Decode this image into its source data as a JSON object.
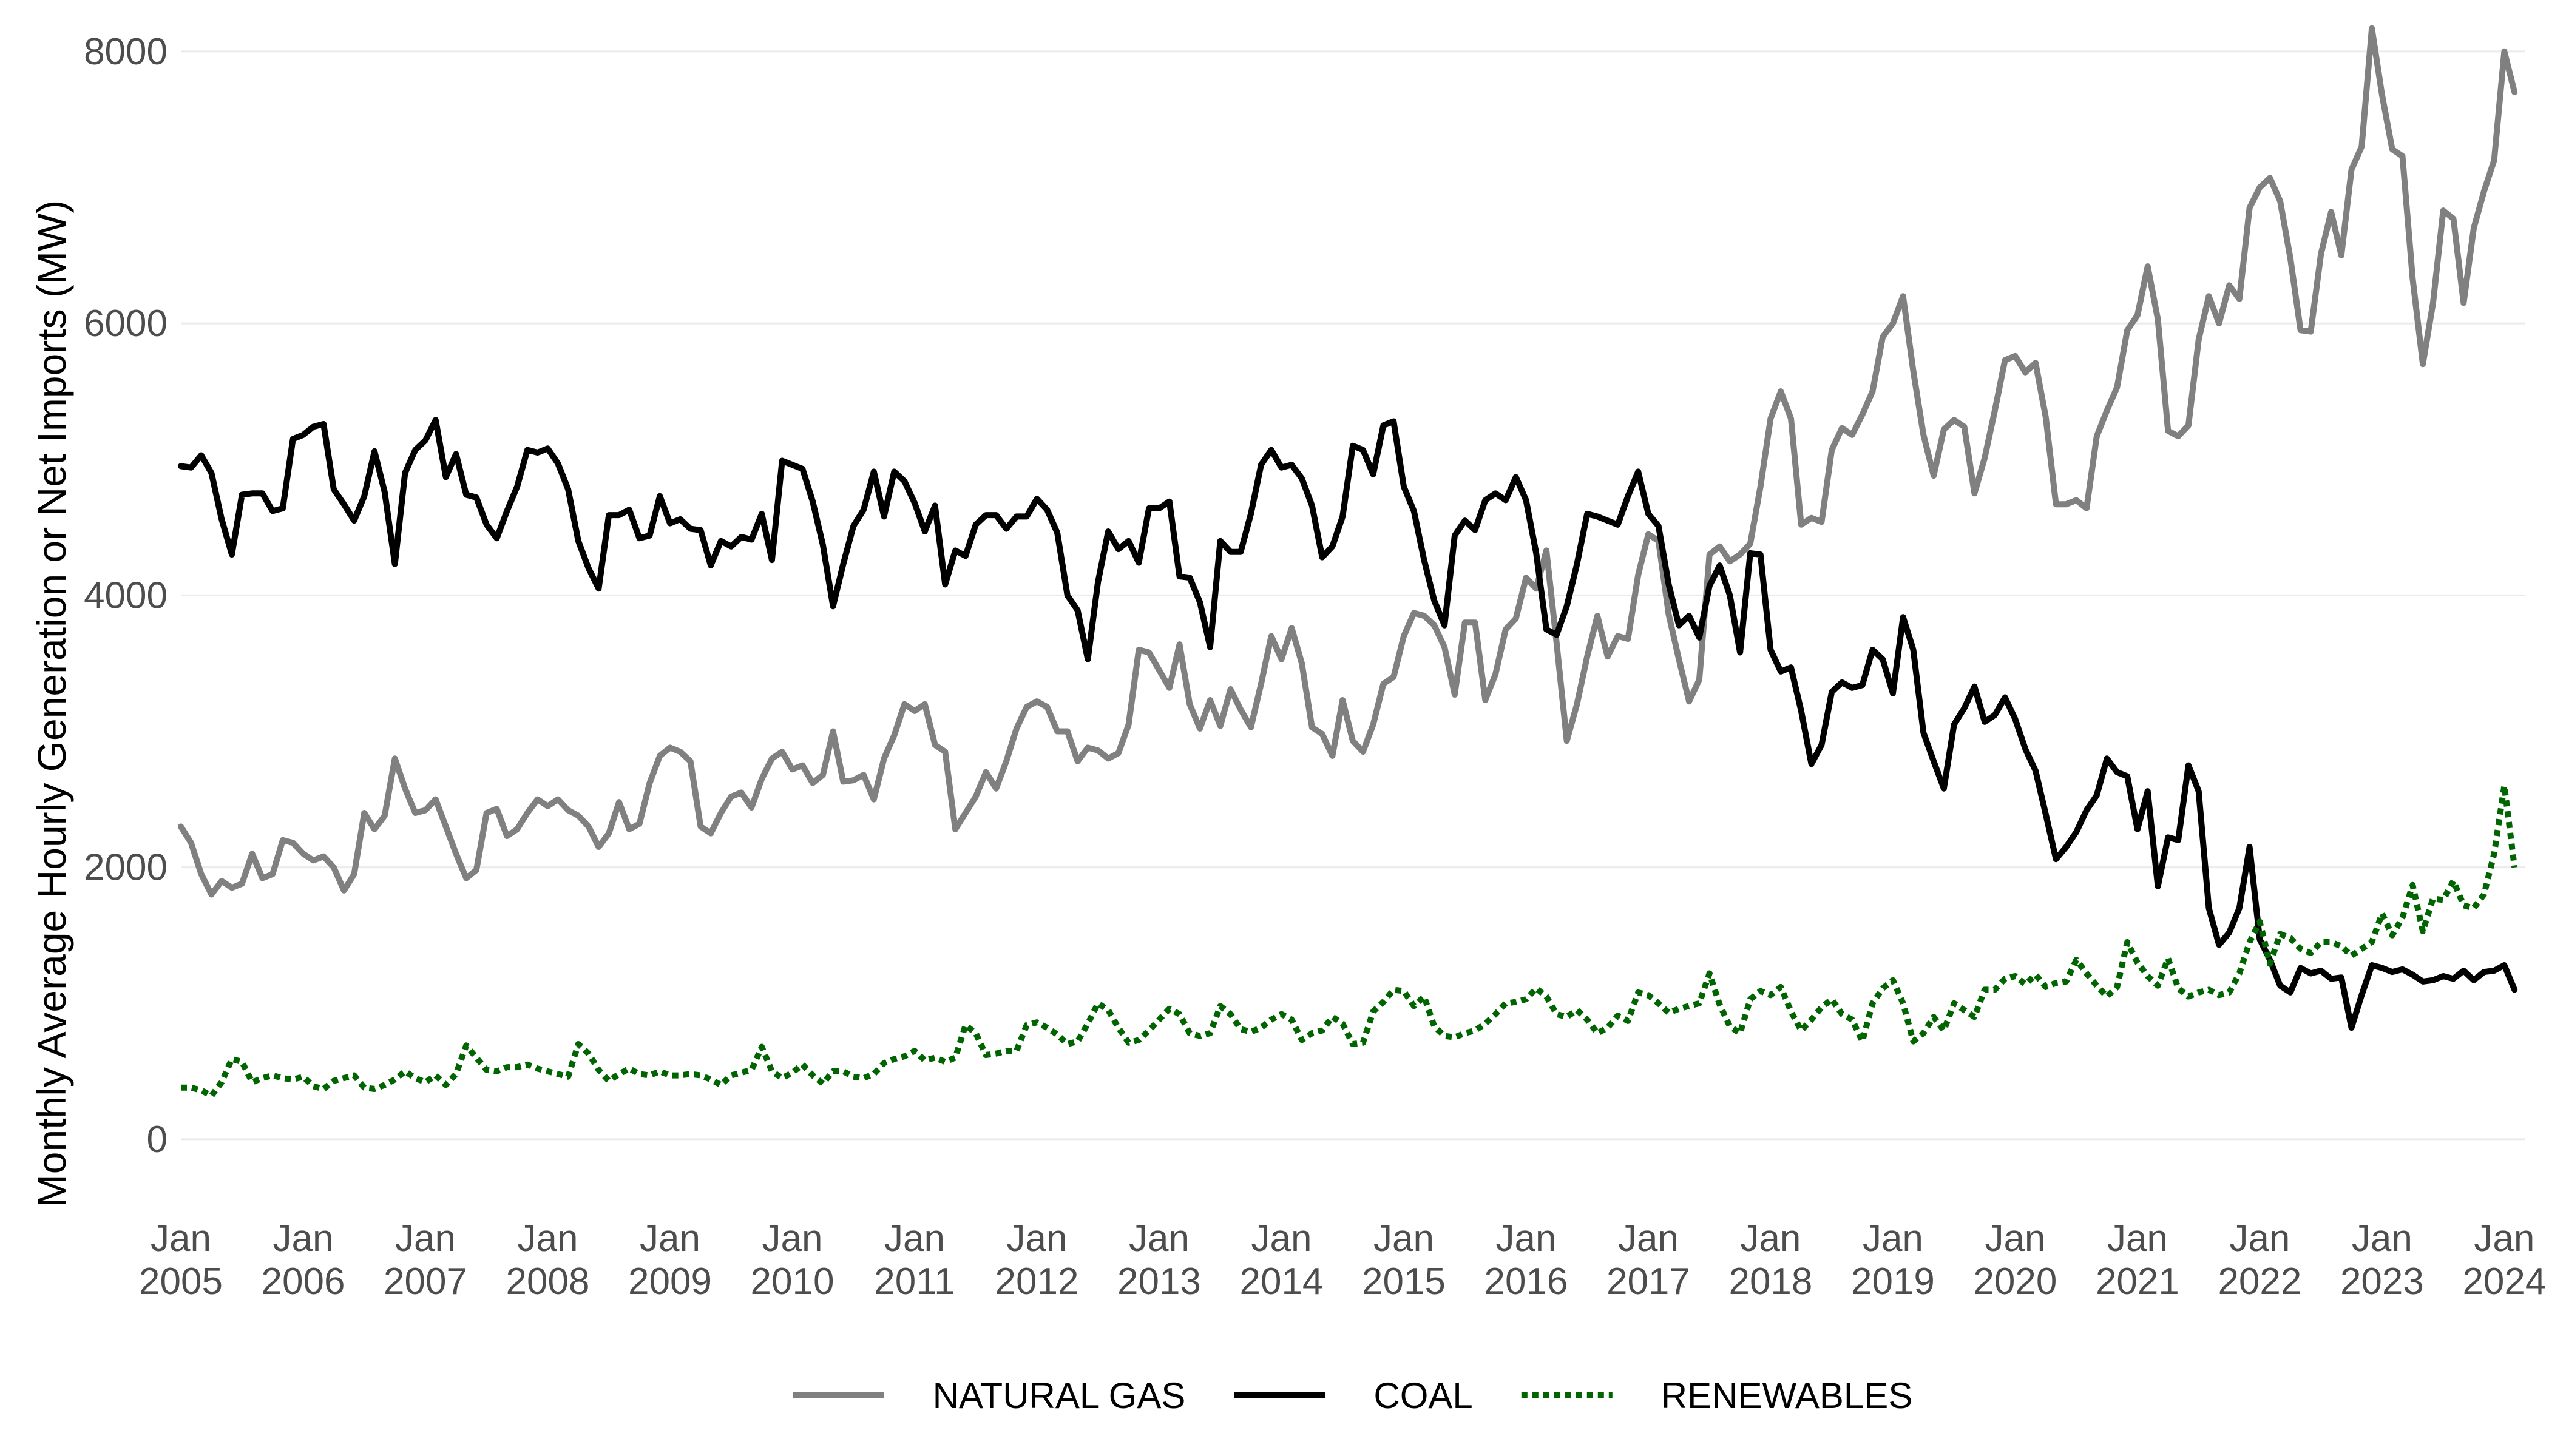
{
  "chart_data": {
    "type": "line",
    "title": "",
    "xlabel": "",
    "ylabel": "Monthly Average Hourly Generation or Net Imports (MW)",
    "x_start": "2005-01",
    "x_end": "2024-03",
    "xlim": [
      "2005-01",
      "2024-03"
    ],
    "ylim": [
      -500,
      8200
    ],
    "y_ticks": [
      0,
      2000,
      4000,
      6000,
      8000
    ],
    "y_tick_labels": [
      "0",
      "2000",
      "4000",
      "6000",
      "8000"
    ],
    "x_tick_dates": [
      "2005-01",
      "2006-01",
      "2007-01",
      "2008-01",
      "2009-01",
      "2010-01",
      "2011-01",
      "2012-01",
      "2013-01",
      "2014-01",
      "2015-01",
      "2016-01",
      "2017-01",
      "2018-01",
      "2019-01",
      "2020-01",
      "2021-01",
      "2022-01",
      "2023-01",
      "2024-01"
    ],
    "x_tick_labels": [
      [
        "Jan",
        "2005"
      ],
      [
        "Jan",
        "2006"
      ],
      [
        "Jan",
        "2007"
      ],
      [
        "Jan",
        "2008"
      ],
      [
        "Jan",
        "2009"
      ],
      [
        "Jan",
        "2010"
      ],
      [
        "Jan",
        "2011"
      ],
      [
        "Jan",
        "2012"
      ],
      [
        "Jan",
        "2013"
      ],
      [
        "Jan",
        "2014"
      ],
      [
        "Jan",
        "2015"
      ],
      [
        "Jan",
        "2016"
      ],
      [
        "Jan",
        "2017"
      ],
      [
        "Jan",
        "2018"
      ],
      [
        "Jan",
        "2019"
      ],
      [
        "Jan",
        "2020"
      ],
      [
        "Jan",
        "2021"
      ],
      [
        "Jan",
        "2022"
      ],
      [
        "Jan",
        "2023"
      ],
      [
        "Jan",
        "2024"
      ]
    ],
    "grid": true,
    "legend_position": "bottom",
    "series": [
      {
        "name": "NATURAL GAS",
        "color": "#808080",
        "dash": "solid",
        "values": [
          2300,
          2180,
          1950,
          1800,
          1900,
          1850,
          1880,
          2100,
          1920,
          1950,
          2200,
          2180,
          2100,
          2050,
          2080,
          2000,
          1830,
          1950,
          2400,
          2280,
          2380,
          2800,
          2580,
          2400,
          2420,
          2500,
          2300,
          2100,
          1920,
          1980,
          2400,
          2430,
          2230,
          2280,
          2400,
          2500,
          2450,
          2500,
          2420,
          2380,
          2300,
          2150,
          2250,
          2480,
          2280,
          2320,
          2620,
          2820,
          2880,
          2850,
          2780,
          2300,
          2250,
          2400,
          2520,
          2550,
          2440,
          2650,
          2800,
          2850,
          2720,
          2750,
          2620,
          2680,
          3000,
          2630,
          2640,
          2680,
          2500,
          2800,
          2970,
          3200,
          3150,
          3200,
          2900,
          2850,
          2280,
          2400,
          2520,
          2700,
          2580,
          2780,
          3020,
          3180,
          3220,
          3180,
          3000,
          3000,
          2780,
          2880,
          2860,
          2800,
          2840,
          3050,
          3600,
          3580,
          3450,
          3320,
          3640,
          3200,
          3020,
          3230,
          3040,
          3310,
          3160,
          3030,
          3350,
          3700,
          3530,
          3760,
          3500,
          3030,
          2980,
          2820,
          3230,
          2930,
          2850,
          3050,
          3350,
          3400,
          3700,
          3870,
          3850,
          3780,
          3620,
          3270,
          3800,
          3800,
          3230,
          3420,
          3750,
          3830,
          4130,
          4050,
          4330,
          3650,
          2930,
          3200,
          3550,
          3850,
          3550,
          3700,
          3680,
          4150,
          4450,
          4400,
          3860,
          3530,
          3220,
          3380,
          4300,
          4360,
          4250,
          4300,
          4380,
          4800,
          5300,
          5500,
          5300,
          4520,
          4570,
          4540,
          5070,
          5230,
          5180,
          5330,
          5500,
          5900,
          6000,
          6200,
          5650,
          5180,
          4880,
          5220,
          5290,
          5240,
          4750,
          5010,
          5360,
          5730,
          5760,
          5640,
          5710,
          5310,
          4670,
          4670,
          4700,
          4640,
          5170,
          5360,
          5530,
          5950,
          6060,
          6420,
          6030,
          5210,
          5170,
          5250,
          5880,
          6200,
          6000,
          6280,
          6180,
          6850,
          7000,
          7070,
          6900,
          6480,
          5950,
          5940,
          6510,
          6820,
          6500,
          7130,
          7300,
          8170,
          7680,
          7280,
          7230,
          6330,
          5700,
          6150,
          6830,
          6770,
          6150,
          6700,
          6970,
          7200,
          8000,
          7700
        ]
      },
      {
        "name": "COAL",
        "color": "#000000",
        "dash": "solid",
        "values": [
          4950,
          4940,
          5030,
          4900,
          4560,
          4300,
          4740,
          4750,
          4750,
          4620,
          4640,
          5150,
          5180,
          5240,
          5260,
          4780,
          4670,
          4550,
          4730,
          5060,
          4760,
          4230,
          4900,
          5070,
          5140,
          5290,
          4870,
          5040,
          4740,
          4720,
          4520,
          4420,
          4620,
          4800,
          5070,
          5050,
          5080,
          4970,
          4780,
          4400,
          4200,
          4050,
          4590,
          4590,
          4630,
          4420,
          4440,
          4730,
          4530,
          4560,
          4490,
          4480,
          4220,
          4400,
          4360,
          4430,
          4410,
          4600,
          4260,
          4990,
          4960,
          4930,
          4690,
          4370,
          3920,
          4230,
          4510,
          4630,
          4910,
          4580,
          4910,
          4840,
          4680,
          4470,
          4660,
          4080,
          4330,
          4290,
          4520,
          4590,
          4590,
          4490,
          4580,
          4580,
          4710,
          4630,
          4460,
          4000,
          3890,
          3530,
          4100,
          4470,
          4340,
          4400,
          4240,
          4640,
          4640,
          4690,
          4140,
          4130,
          3950,
          3620,
          4400,
          4320,
          4320,
          4600,
          4960,
          5070,
          4940,
          4960,
          4860,
          4660,
          4280,
          4360,
          4580,
          5100,
          5070,
          4890,
          5250,
          5280,
          4800,
          4620,
          4260,
          3960,
          3780,
          4440,
          4550,
          4480,
          4700,
          4750,
          4700,
          4870,
          4700,
          4310,
          3750,
          3710,
          3920,
          4230,
          4600,
          4580,
          4550,
          4520,
          4730,
          4910,
          4600,
          4510,
          4080,
          3780,
          3850,
          3690,
          4070,
          4220,
          4000,
          3580,
          4310,
          4300,
          3600,
          3440,
          3470,
          3150,
          2760,
          2900,
          3290,
          3360,
          3320,
          3340,
          3600,
          3530,
          3280,
          3840,
          3600,
          2990,
          2780,
          2580,
          3050,
          3170,
          3330,
          3070,
          3120,
          3250,
          3090,
          2870,
          2710,
          2390,
          2060,
          2150,
          2260,
          2420,
          2530,
          2800,
          2700,
          2670,
          2280,
          2560,
          1860,
          2220,
          2200,
          2750,
          2560,
          1700,
          1430,
          1520,
          1700,
          2150,
          1470,
          1320,
          1130,
          1080,
          1260,
          1220,
          1240,
          1180,
          1190,
          820,
          1060,
          1280,
          1260,
          1230,
          1250,
          1210,
          1160,
          1170,
          1200,
          1180,
          1240,
          1170,
          1230,
          1240,
          1280,
          1100
        ]
      },
      {
        "name": "RENEWABLES",
        "color": "#006400",
        "dash": "dotted",
        "values": [
          380,
          380,
          360,
          320,
          420,
          590,
          570,
          420,
          450,
          470,
          450,
          440,
          460,
          390,
          370,
          430,
          450,
          470,
          380,
          370,
          400,
          440,
          500,
          450,
          420,
          470,
          400,
          480,
          690,
          600,
          510,
          500,
          530,
          530,
          550,
          520,
          500,
          480,
          460,
          700,
          630,
          510,
          430,
          480,
          520,
          480,
          470,
          500,
          470,
          470,
          480,
          470,
          440,
          400,
          470,
          490,
          510,
          680,
          500,
          450,
          490,
          550,
          470,
          410,
          500,
          500,
          460,
          450,
          480,
          560,
          590,
          610,
          650,
          580,
          600,
          570,
          600,
          840,
          780,
          620,
          630,
          650,
          650,
          840,
          860,
          820,
          770,
          700,
          720,
          850,
          1000,
          950,
          820,
          710,
          730,
          800,
          880,
          960,
          920,
          780,
          760,
          780,
          980,
          920,
          810,
          790,
          820,
          880,
          920,
          880,
          730,
          780,
          800,
          900,
          850,
          700,
          710,
          940,
          1010,
          1100,
          1090,
          980,
          1050,
          830,
          760,
          750,
          780,
          800,
          850,
          920,
          1000,
          1010,
          1030,
          1110,
          1050,
          920,
          900,
          950,
          880,
          780,
          820,
          910,
          870,
          1080,
          1060,
          1000,
          930,
          960,
          980,
          1000,
          1220,
          990,
          830,
          780,
          1030,
          1090,
          1060,
          1120,
          940,
          800,
          880,
          970,
          1030,
          920,
          880,
          720,
          1000,
          1110,
          1170,
          1000,
          720,
          780,
          900,
          800,
          1000,
          950,
          900,
          1100,
          1100,
          1180,
          1200,
          1140,
          1210,
          1120,
          1150,
          1160,
          1320,
          1220,
          1130,
          1050,
          1120,
          1450,
          1300,
          1200,
          1130,
          1330,
          1110,
          1050,
          1080,
          1100,
          1060,
          1080,
          1220,
          1450,
          1600,
          1290,
          1510,
          1480,
          1400,
          1370,
          1450,
          1450,
          1420,
          1350,
          1400,
          1450,
          1660,
          1500,
          1630,
          1870,
          1530,
          1770,
          1760,
          1900,
          1720,
          1700,
          1800,
          2100,
          2600,
          2000
        ]
      }
    ]
  }
}
